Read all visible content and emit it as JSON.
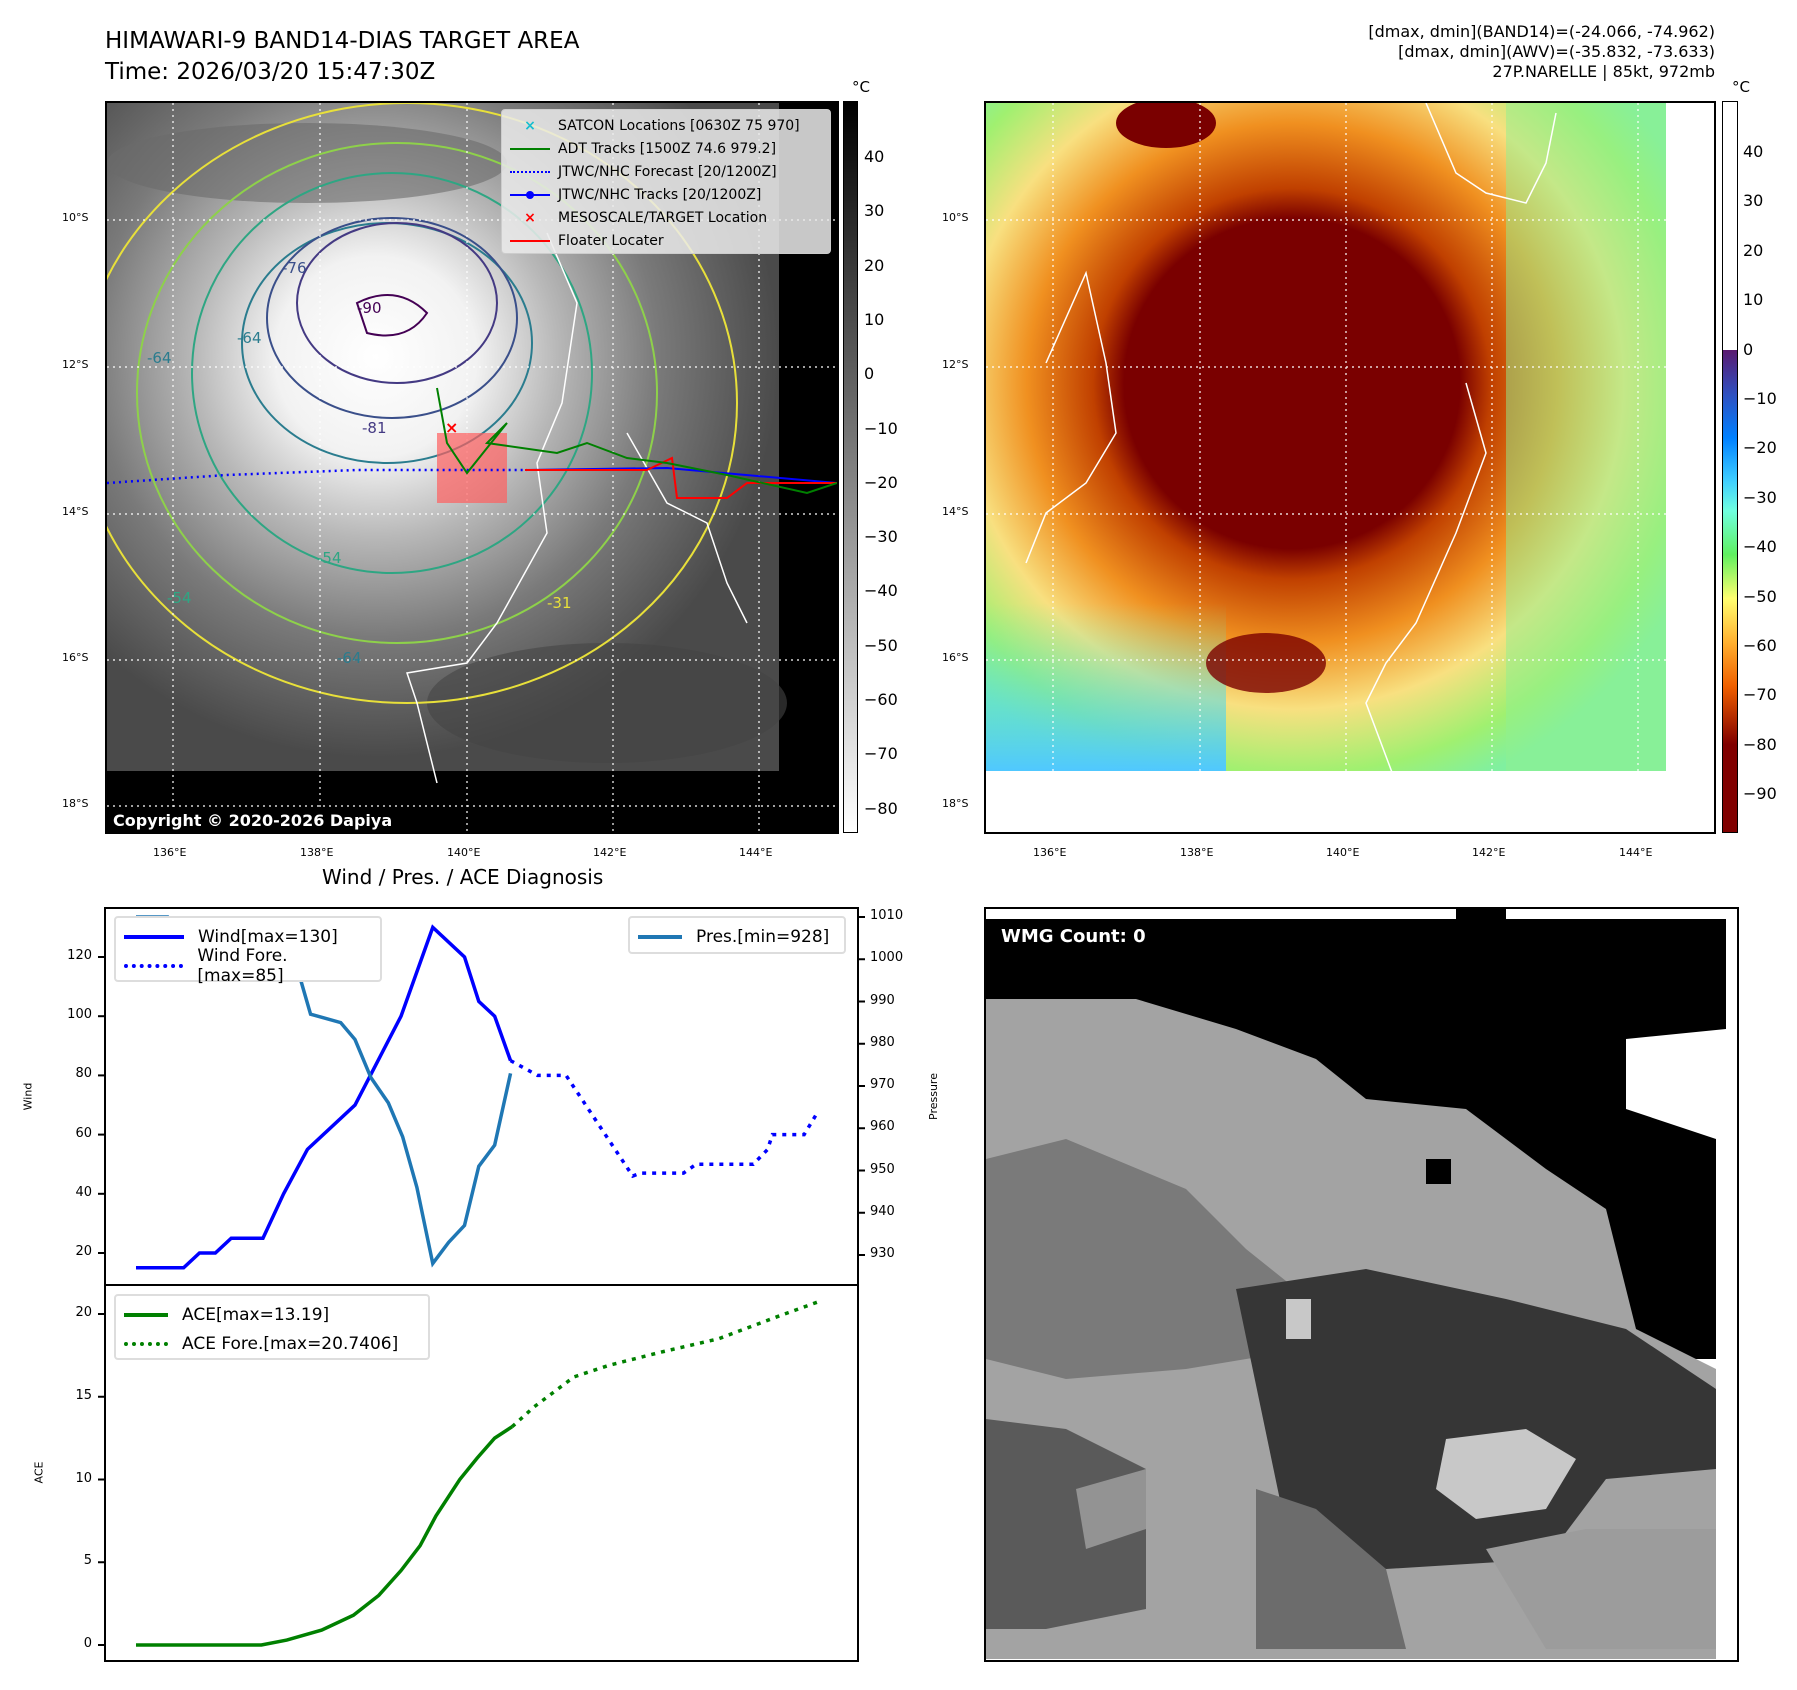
{
  "header": {
    "title": "HIMAWARI-9 BAND14-DIAS TARGET AREA",
    "time": "Time: 2026/03/20 15:47:30Z",
    "band14_range": "[dmax, dmin](BAND14)=(-24.066, -74.962)",
    "awv_range": "[dmax, dmin](AWV)=(-35.832, -73.633)",
    "storm_info": "27P.NARELLE | 85kt, 972mb"
  },
  "map_axes": {
    "lat_labels": [
      "10°S",
      "12°S",
      "14°S",
      "16°S",
      "18°S"
    ],
    "lon_labels": [
      "136°E",
      "138°E",
      "140°E",
      "142°E",
      "144°E"
    ]
  },
  "ir_map": {
    "unit": "°C",
    "colorbar_ticks": [
      "40",
      "30",
      "20",
      "10",
      "0",
      "−10",
      "−20",
      "−30",
      "−40",
      "−50",
      "−60",
      "−70",
      "−80"
    ],
    "copyright": "Copyright © 2020-2026 Dapiya",
    "contour_labels": [
      "-76",
      "-90",
      "-81",
      "-64",
      "-64",
      "-54",
      "-54",
      "-64",
      "-31"
    ],
    "legend": [
      {
        "label": "SATCON Locations [0630Z 75 970]",
        "color": "#17becf"
      },
      {
        "label": "ADT Tracks [1500Z 74.6 979.2]",
        "color": "#008000"
      },
      {
        "label": "JTWC/NHC Forecast [20/1200Z]",
        "color": "#0000ff"
      },
      {
        "label": "JTWC/NHC Tracks [20/1200Z]",
        "color": "#0000ff"
      },
      {
        "label": "MESOSCALE/TARGET Location",
        "color": "#ff0000"
      },
      {
        "label": "Floater Locater",
        "color": "#ff0000"
      }
    ]
  },
  "awv_map": {
    "unit": "°C",
    "colorbar_ticks": [
      "40",
      "30",
      "20",
      "10",
      "0",
      "−10",
      "−20",
      "−30",
      "−40",
      "−50",
      "−60",
      "−70",
      "−80",
      "−90"
    ]
  },
  "wmg_panel": {
    "label": "WMG Count: 0"
  },
  "chart_data": {
    "type": "line",
    "title": "Wind / Pres. / ACE Diagnosis",
    "panels": [
      {
        "name": "wind-pressure",
        "ylabel": "Wind",
        "y2label": "Pressure",
        "ylim": [
          10,
          136
        ],
        "y2lim": [
          924,
          1012
        ],
        "yticks": [
          "20",
          "40",
          "60",
          "80",
          "100",
          "120"
        ],
        "y2ticks": [
          "930",
          "940",
          "950",
          "960",
          "970",
          "980",
          "990",
          "1000",
          "1010"
        ],
        "series": [
          {
            "name": "Wind[max=130]",
            "axis": "left",
            "color": "#0000ff",
            "style": "solid",
            "x": [
              0,
              3,
              4,
              5,
              6,
              8,
              9.3,
              10.8,
              13.8,
              16.7,
              18.7,
              20.7,
              21.6,
              22.6,
              23.6
            ],
            "y": [
              15,
              15,
              20,
              20,
              25,
              25,
              40,
              55,
              70,
              100,
              130,
              120,
              105,
              100,
              85
            ]
          },
          {
            "name": "Wind Fore.[max=85]",
            "axis": "left",
            "color": "#0000ff",
            "style": "dotted",
            "x": [
              23.6,
              25.3,
              27.1,
              31.3,
              31.8,
              34.5,
              35.3,
              38.9,
              39.8,
              40.1,
              42.1,
              43
            ],
            "y": [
              85,
              80,
              80,
              46,
              47,
              47,
              50,
              50,
              55,
              60,
              60,
              68
            ]
          },
          {
            "name": "Pres.[min=928]",
            "axis": "right",
            "color": "#1f77b4",
            "style": "solid",
            "x": [
              0,
              2,
              3,
              4,
              5,
              6,
              9,
              10,
              11,
              12.9,
              13.8,
              14.8,
              15.9,
              16.8,
              17.7,
              18.7,
              19.7,
              20.7,
              21.6,
              22.6,
              23.6
            ],
            "y": [
              1010,
              1010,
              1005,
              1006,
              1005,
              1003,
              1003,
              1000,
              987,
              985,
              981,
              972,
              966,
              958,
              946,
              928,
              933,
              937,
              951,
              956,
              973
            ]
          }
        ]
      },
      {
        "name": "ace",
        "ylabel": "ACE",
        "ylim": [
          -1,
          22
        ],
        "yticks": [
          "0",
          "5",
          "10",
          "15",
          "20"
        ],
        "series": [
          {
            "name": "ACE[max=13.19]",
            "color": "#008000",
            "style": "solid",
            "x": [
              0,
              7.9,
              9.5,
              11.7,
              13.7,
              15.3,
              16.7,
              17.9,
              18.9,
              20.4,
              21.5,
              22.6,
              23.7
            ],
            "y": [
              0,
              0,
              0.3,
              0.9,
              1.8,
              3,
              4.5,
              6,
              7.8,
              10,
              11.3,
              12.5,
              13.19
            ]
          },
          {
            "name": "ACE Fore.[max=20.7406]",
            "color": "#008000",
            "style": "dotted",
            "x": [
              23.7,
              25.1,
              27.6,
              29.8,
              33.1,
              36.7,
              40.3,
              43
            ],
            "y": [
              13.19,
              14.4,
              16.2,
              16.9,
              17.7,
              18.5,
              19.8,
              20.7406
            ]
          }
        ]
      }
    ]
  }
}
